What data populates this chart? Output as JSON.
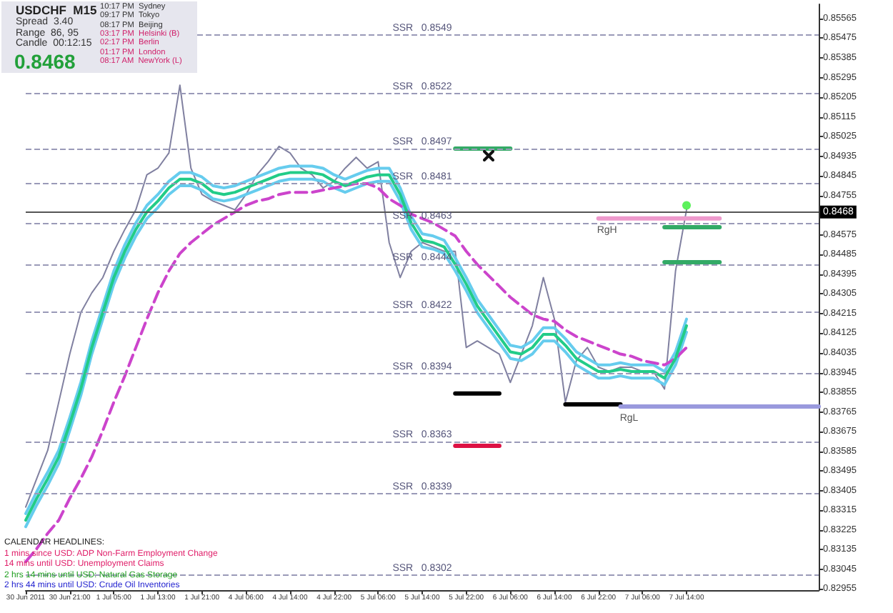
{
  "chart_data": {
    "type": "line",
    "title": "USDCHF  M15",
    "categories": [
      "30 Jun 2011",
      null,
      null,
      null,
      "30 Jun 21:00",
      null,
      null,
      null,
      "1 Jul 05:00",
      null,
      null,
      null,
      "1 Jul 13:00",
      null,
      null,
      null,
      "1 Jul 21:00",
      null,
      null,
      null,
      "4 Jul 06:00",
      null,
      null,
      null,
      "4 Jul 14:00",
      null,
      null,
      null,
      "4 Jul 22:00",
      null,
      null,
      null,
      "5 Jul 06:00",
      null,
      null,
      null,
      "5 Jul 14:00",
      null,
      null,
      null,
      "5 Jul 22:00",
      null,
      null,
      null,
      "6 Jul 06:00",
      null,
      null,
      null,
      "6 Jul 14:00",
      null,
      null,
      null,
      "6 Jul 22:00",
      null,
      null,
      null,
      "7 Jul 06:00",
      null,
      null,
      null,
      "7 Jul 14:00",
      null,
      null,
      null,
      null,
      null,
      null,
      null,
      null,
      null,
      null,
      null,
      null
    ],
    "series": [
      {
        "color": "#8080a0",
        "values": [
          0.8333,
          0.8346,
          0.8359,
          0.8381,
          0.8403,
          0.8422,
          0.8431,
          0.8438,
          0.845,
          0.846,
          0.8469,
          0.8485,
          0.8488,
          0.8495,
          0.8526,
          0.8488,
          0.8476,
          0.8473,
          0.8471,
          0.8469,
          0.8476,
          0.8485,
          0.8491,
          0.8498,
          0.8495,
          0.8488,
          0.8485,
          0.8479,
          0.8482,
          0.8488,
          0.8493,
          0.8488,
          0.8491,
          0.8454,
          0.8438,
          0.845,
          0.8454,
          0.8452,
          0.845,
          0.845,
          0.8406,
          0.8409,
          0.8406,
          0.8403,
          0.839,
          0.8403,
          0.8416,
          0.8438,
          0.8419,
          0.8381,
          0.84,
          0.8406,
          0.8397,
          0.8395,
          0.8397,
          0.8397,
          0.8395,
          0.8395,
          0.8387,
          0.8441,
          0.8469,
          null,
          null,
          null,
          null,
          null,
          null,
          null,
          null,
          null,
          null,
          null,
          null
        ]
      },
      {
        "color": "#66ccee",
        "values": [
          0.833,
          0.834,
          0.8349,
          0.8359,
          0.8374,
          0.839,
          0.8409,
          0.8425,
          0.8441,
          0.8453,
          0.8463,
          0.8471,
          0.8476,
          0.8482,
          0.8486,
          0.8486,
          0.8484,
          0.848,
          0.8479,
          0.848,
          0.8482,
          0.8484,
          0.8486,
          0.8488,
          0.8489,
          0.8489,
          0.8489,
          0.8488,
          0.8485,
          0.8483,
          0.8485,
          0.8487,
          0.8488,
          0.8488,
          0.8479,
          0.8466,
          0.8458,
          0.8457,
          0.8455,
          0.8447,
          0.8438,
          0.8428,
          0.8421,
          0.8414,
          0.8407,
          0.8406,
          0.8409,
          0.8415,
          0.8415,
          0.841,
          0.8404,
          0.8401,
          0.8398,
          0.8398,
          0.8399,
          0.8398,
          0.8398,
          0.8398,
          0.8395,
          0.8404,
          0.8419,
          null,
          null,
          null,
          null,
          null,
          null,
          null,
          null,
          null,
          null,
          null,
          null
        ]
      },
      {
        "color": "#66ccee",
        "values": [
          0.8324,
          0.8334,
          0.8343,
          0.8353,
          0.8368,
          0.8384,
          0.8403,
          0.8419,
          0.8435,
          0.8447,
          0.8457,
          0.8465,
          0.847,
          0.8476,
          0.848,
          0.848,
          0.8478,
          0.8474,
          0.8473,
          0.8474,
          0.8476,
          0.8478,
          0.848,
          0.8482,
          0.8483,
          0.8483,
          0.8483,
          0.8482,
          0.8479,
          0.8477,
          0.8479,
          0.8481,
          0.8482,
          0.8482,
          0.8473,
          0.846,
          0.8452,
          0.8451,
          0.8449,
          0.8441,
          0.8432,
          0.8422,
          0.8415,
          0.8408,
          0.8401,
          0.84,
          0.8403,
          0.8409,
          0.8409,
          0.8404,
          0.8398,
          0.8395,
          0.8392,
          0.8392,
          0.8393,
          0.8392,
          0.8392,
          0.8392,
          0.8389,
          0.8398,
          0.8413,
          null,
          null,
          null,
          null,
          null,
          null,
          null,
          null,
          null,
          null,
          null,
          null
        ]
      },
      {
        "color": "#cc44cc",
        "line_style": "dashed",
        "values": [
          0.8308,
          0.8314,
          0.8321,
          0.8327,
          0.8337,
          0.8346,
          0.8356,
          0.8368,
          0.8381,
          0.8393,
          0.8406,
          0.8419,
          0.8431,
          0.8441,
          0.8449,
          0.8454,
          0.8458,
          0.8462,
          0.8465,
          0.8468,
          0.8471,
          0.8473,
          0.8474,
          0.8476,
          0.8477,
          0.8477,
          0.8477,
          0.8478,
          0.8479,
          0.848,
          0.8481,
          0.8481,
          0.8479,
          0.8474,
          0.8471,
          0.8467,
          0.8465,
          0.8463,
          0.846,
          0.8457,
          0.845,
          0.8444,
          0.8439,
          0.8434,
          0.8429,
          0.8425,
          0.8421,
          0.8419,
          0.8418,
          0.8414,
          0.8411,
          0.8409,
          0.8407,
          0.8405,
          0.8403,
          0.8402,
          0.84,
          0.8399,
          0.8398,
          0.8401,
          0.8406,
          null,
          null,
          null,
          null,
          null,
          null,
          null,
          null,
          null,
          null,
          null,
          null
        ]
      },
      {
        "color": "#22cc88",
        "values": [
          0.8327,
          0.8337,
          0.8346,
          0.8356,
          0.8371,
          0.8387,
          0.8406,
          0.8422,
          0.8438,
          0.845,
          0.846,
          0.8468,
          0.8473,
          0.8479,
          0.8483,
          0.8483,
          0.8481,
          0.8477,
          0.8476,
          0.8477,
          0.8479,
          0.8481,
          0.8483,
          0.8485,
          0.8486,
          0.8486,
          0.8486,
          0.8485,
          0.8482,
          0.848,
          0.8482,
          0.8484,
          0.8485,
          0.8485,
          0.8476,
          0.8463,
          0.8455,
          0.8454,
          0.8452,
          0.8444,
          0.8435,
          0.8425,
          0.8418,
          0.8411,
          0.8404,
          0.8403,
          0.8406,
          0.8412,
          0.8412,
          0.8407,
          0.8401,
          0.8398,
          0.8395,
          0.8395,
          0.8396,
          0.8395,
          0.8395,
          0.8395,
          0.8392,
          0.8401,
          0.8416,
          null,
          null,
          null,
          null,
          null,
          null,
          null,
          null,
          null,
          null,
          null,
          null
        ]
      },
      {
        "color": "#33aa66",
        "values": [
          null,
          null,
          null,
          null,
          null,
          null,
          null,
          null,
          null,
          null,
          null,
          null,
          null,
          null,
          null,
          null,
          null,
          null,
          null,
          null,
          null,
          null,
          null,
          null,
          null,
          null,
          null,
          null,
          null,
          null,
          null,
          null,
          null,
          null,
          null,
          null,
          null,
          null,
          null,
          0.8497,
          0.8497,
          0.8497,
          0.8497,
          0.8497,
          0.8497,
          null,
          null,
          null,
          null,
          null,
          null,
          null,
          null,
          null,
          null,
          null,
          null,
          null,
          null,
          null,
          null,
          null,
          null,
          null,
          null,
          null,
          null,
          null,
          null,
          null,
          null,
          null,
          null
        ]
      },
      {
        "color": "#000000",
        "values": [
          null,
          null,
          null,
          null,
          null,
          null,
          null,
          null,
          null,
          null,
          null,
          null,
          null,
          null,
          null,
          null,
          null,
          null,
          null,
          null,
          null,
          null,
          null,
          null,
          null,
          null,
          null,
          null,
          null,
          null,
          null,
          null,
          null,
          null,
          null,
          null,
          null,
          null,
          null,
          0.8385,
          0.8385,
          0.8385,
          0.8385,
          0.8385,
          null,
          null,
          null,
          null,
          null,
          null,
          null,
          null,
          null,
          null,
          null,
          null,
          null,
          null,
          null,
          null,
          null,
          null,
          null,
          null,
          null,
          null,
          null,
          null,
          null,
          null,
          null,
          null,
          null
        ]
      },
      {
        "color": "#dd1144",
        "values": [
          null,
          null,
          null,
          null,
          null,
          null,
          null,
          null,
          null,
          null,
          null,
          null,
          null,
          null,
          null,
          null,
          null,
          null,
          null,
          null,
          null,
          null,
          null,
          null,
          null,
          null,
          null,
          null,
          null,
          null,
          null,
          null,
          null,
          null,
          null,
          null,
          null,
          null,
          null,
          0.8361,
          0.8361,
          0.8361,
          0.8361,
          0.8361,
          null,
          null,
          null,
          null,
          null,
          null,
          null,
          null,
          null,
          null,
          null,
          null,
          null,
          null,
          null,
          null,
          null,
          null,
          null,
          null,
          null,
          null,
          null,
          null,
          null,
          null,
          null,
          null,
          null
        ]
      },
      {
        "color": "#000000",
        "values": [
          null,
          null,
          null,
          null,
          null,
          null,
          null,
          null,
          null,
          null,
          null,
          null,
          null,
          null,
          null,
          null,
          null,
          null,
          null,
          null,
          null,
          null,
          null,
          null,
          null,
          null,
          null,
          null,
          null,
          null,
          null,
          null,
          null,
          null,
          null,
          null,
          null,
          null,
          null,
          null,
          null,
          null,
          null,
          null,
          null,
          null,
          null,
          null,
          null,
          0.838,
          0.838,
          0.838,
          0.838,
          0.838,
          0.838,
          null,
          null,
          null,
          null,
          null,
          null,
          null,
          null,
          null,
          null,
          null,
          null,
          null,
          null,
          null,
          null,
          null,
          null
        ]
      },
      {
        "color": "#33aa66",
        "values": [
          null,
          null,
          null,
          null,
          null,
          null,
          null,
          null,
          null,
          null,
          null,
          null,
          null,
          null,
          null,
          null,
          null,
          null,
          null,
          null,
          null,
          null,
          null,
          null,
          null,
          null,
          null,
          null,
          null,
          null,
          null,
          null,
          null,
          null,
          null,
          null,
          null,
          null,
          null,
          null,
          null,
          null,
          null,
          null,
          null,
          null,
          null,
          null,
          null,
          null,
          null,
          null,
          null,
          null,
          null,
          null,
          null,
          null,
          0.8461,
          0.8461,
          0.8461,
          0.8461,
          0.8461,
          0.8461,
          null,
          null,
          null,
          null,
          null,
          null,
          null,
          null,
          null
        ]
      },
      {
        "color": "#33aa66",
        "values": [
          null,
          null,
          null,
          null,
          null,
          null,
          null,
          null,
          null,
          null,
          null,
          null,
          null,
          null,
          null,
          null,
          null,
          null,
          null,
          null,
          null,
          null,
          null,
          null,
          null,
          null,
          null,
          null,
          null,
          null,
          null,
          null,
          null,
          null,
          null,
          null,
          null,
          null,
          null,
          null,
          null,
          null,
          null,
          null,
          null,
          null,
          null,
          null,
          null,
          null,
          null,
          null,
          null,
          null,
          null,
          null,
          null,
          null,
          0.8445,
          0.8445,
          0.8445,
          0.8445,
          0.8445,
          0.8445,
          null,
          null,
          null,
          null,
          null,
          null,
          null,
          null,
          null
        ]
      },
      {
        "name": "RgH",
        "color": "#ee99cc",
        "values": [
          null,
          null,
          null,
          null,
          null,
          null,
          null,
          null,
          null,
          null,
          null,
          null,
          null,
          null,
          null,
          null,
          null,
          null,
          null,
          null,
          null,
          null,
          null,
          null,
          null,
          null,
          null,
          null,
          null,
          null,
          null,
          null,
          null,
          null,
          null,
          null,
          null,
          null,
          null,
          null,
          null,
          null,
          null,
          null,
          null,
          null,
          null,
          null,
          null,
          null,
          null,
          null,
          0.8465,
          0.8465,
          0.8465,
          0.8465,
          0.8465,
          0.8465,
          0.8465,
          0.8465,
          0.8465,
          0.8465,
          0.8465,
          0.8465,
          null,
          null,
          null,
          null,
          null,
          null,
          null,
          null,
          null
        ]
      },
      {
        "name": "RgL",
        "color": "#9999dd",
        "values": [
          null,
          null,
          null,
          null,
          null,
          null,
          null,
          null,
          null,
          null,
          null,
          null,
          null,
          null,
          null,
          null,
          null,
          null,
          null,
          null,
          null,
          null,
          null,
          null,
          null,
          null,
          null,
          null,
          null,
          null,
          null,
          null,
          null,
          null,
          null,
          null,
          null,
          null,
          null,
          null,
          null,
          null,
          null,
          null,
          null,
          null,
          null,
          null,
          null,
          null,
          null,
          null,
          null,
          null,
          0.8379,
          0.8379,
          0.8379,
          0.8379,
          0.8379,
          0.8379,
          0.8379,
          0.8379,
          0.8379,
          0.8379,
          0.8379,
          0.8379,
          0.8379,
          0.8379,
          0.8379,
          0.8379,
          0.8379,
          0.8379,
          0.8379
        ]
      },
      {
        "type": "scatter",
        "color": "#33ee33",
        "values": [
          null,
          null,
          null,
          null,
          null,
          null,
          null,
          null,
          null,
          null,
          null,
          null,
          null,
          null,
          null,
          null,
          null,
          null,
          null,
          null,
          null,
          null,
          null,
          null,
          null,
          null,
          null,
          null,
          null,
          null,
          null,
          null,
          null,
          null,
          null,
          null,
          null,
          null,
          null,
          null,
          null,
          null,
          null,
          null,
          null,
          null,
          null,
          null,
          null,
          null,
          null,
          null,
          null,
          null,
          null,
          null,
          null,
          null,
          null,
          null,
          0.8471,
          null,
          null,
          null,
          null,
          null,
          null,
          null,
          null,
          null,
          null,
          null,
          null
        ]
      }
    ],
    "ylim": [
      0.8295,
      0.8563
    ],
    "yticks": [
      0.82955,
      0.83045,
      0.83135,
      0.83225,
      0.83315,
      0.83405,
      0.83495,
      0.83585,
      0.83675,
      0.83765,
      0.83855,
      0.83945,
      0.84035,
      0.84125,
      0.84215,
      0.84305,
      0.84395,
      0.84485,
      0.84575,
      0.84755,
      0.84845,
      0.84935,
      0.85025,
      0.85115,
      0.85205,
      0.85295,
      0.85385,
      0.85475,
      0.85565
    ],
    "ref_lines": [
      {
        "axis": "y",
        "value": 0.8549,
        "label": "SSR   0.8549",
        "line_style": "dashed"
      },
      {
        "axis": "y",
        "value": 0.8522,
        "label": "SSR   0.8522",
        "line_style": "dashed"
      },
      {
        "axis": "y",
        "value": 0.8497,
        "label": "SSR   0.8497",
        "line_style": "dashed"
      },
      {
        "axis": "y",
        "value": 0.8481,
        "label": "SSR   0.8481",
        "line_style": "dashed"
      },
      {
        "axis": "y",
        "value": 0.8463,
        "label": "SSR   0.8463",
        "line_style": "dashed"
      },
      {
        "axis": "y",
        "value": 0.8444,
        "label": "SSR   0.8444",
        "line_style": "dashed"
      },
      {
        "axis": "y",
        "value": 0.8422,
        "label": "SSR   0.8422",
        "line_style": "dashed"
      },
      {
        "axis": "y",
        "value": 0.8394,
        "label": "SSR   0.8394",
        "line_style": "dashed"
      },
      {
        "axis": "y",
        "value": 0.8363,
        "label": "SSR   0.8363",
        "line_style": "dashed"
      },
      {
        "axis": "y",
        "value": 0.8339,
        "label": "SSR   0.8339",
        "line_style": "dashed"
      },
      {
        "axis": "y",
        "value": 0.8302,
        "label": "SSR   0.8302",
        "line_style": "dashed"
      },
      {
        "axis": "y",
        "value": 0.8468,
        "label": "0.8468",
        "line_style": "solid",
        "color": "#555555"
      }
    ],
    "annotations": [
      "Spread  3.40",
      "Range  86, 95",
      "Candle  00:12:15",
      "0.8468",
      "10:17 PM  Sydney",
      "09:17 PM  Tokyo",
      "08:17 PM  Beijing",
      "03:17 PM  Helsinki (B)",
      "02:17 PM  Berlin",
      "01:17 PM  London",
      "08:17 AM  NewYork (L)",
      "CALENDAR HEADLINES:",
      "1 mins since USD: ADP Non-Farm Employment Change",
      "14 mins until USD: Unemployment Claims",
      "2 hrs 14 mins until USD: Natural Gas Storage",
      "2 hrs 44 mins until USD: Crude Oil Inventories"
    ],
    "grid": false
  }
}
